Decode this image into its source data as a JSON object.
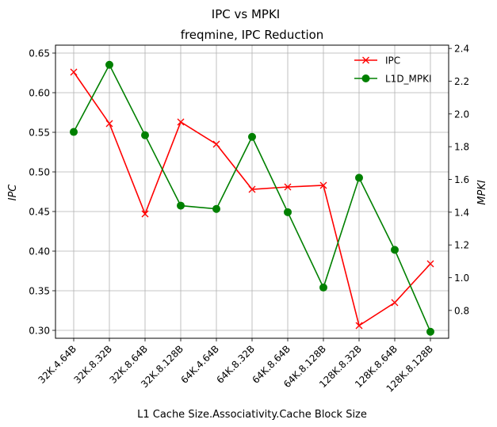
{
  "chart_data": {
    "type": "line",
    "suptitle": "IPC vs MPKI",
    "title": "freqmine, IPC Reduction",
    "xlabel": "L1 Cache Size.Associativity.Cache Block Size",
    "ylabel_left": "IPC",
    "ylabel_right": "MPKI",
    "categories": [
      "32K.4.64B",
      "32K.8.32B",
      "32K.8.64B",
      "32K.8.128B",
      "64K.4.64B",
      "64K.8.32B",
      "64K.8.64B",
      "64K.8.128B",
      "128K.8.32B",
      "128K.8.64B",
      "128K.8.128B"
    ],
    "ylim_left": [
      0.29,
      0.66
    ],
    "ylim_right": [
      0.63,
      2.42
    ],
    "yticks_left": [
      "0.30",
      "0.35",
      "0.40",
      "0.45",
      "0.50",
      "0.55",
      "0.60",
      "0.65"
    ],
    "yticks_right": [
      "0.8",
      "1.0",
      "1.2",
      "1.4",
      "1.6",
      "1.8",
      "2.0",
      "2.2",
      "2.4"
    ],
    "grid": true,
    "legend_position": "top-right",
    "series": [
      {
        "name": "IPC",
        "axis": "left",
        "color": "#ff0000",
        "marker": "x",
        "values": [
          0.626,
          0.561,
          0.447,
          0.563,
          0.535,
          0.478,
          0.481,
          0.483,
          0.306,
          0.335,
          0.384
        ]
      },
      {
        "name": "L1D_MPKI",
        "axis": "right",
        "color": "#008000",
        "marker": "o",
        "values": [
          1.89,
          2.3,
          1.87,
          1.44,
          1.42,
          1.86,
          1.4,
          0.94,
          1.61,
          1.17,
          0.67
        ]
      }
    ]
  }
}
